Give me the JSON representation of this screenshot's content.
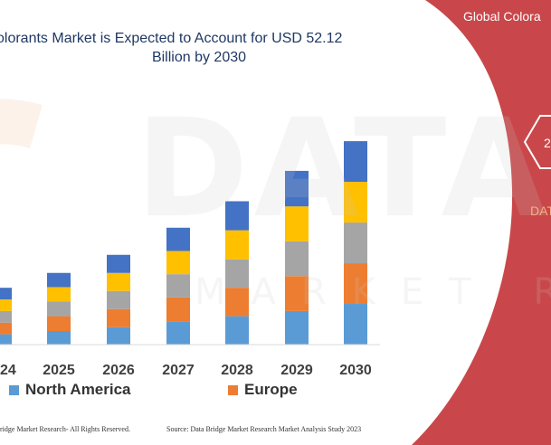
{
  "chart_data": {
    "type": "bar",
    "stacked": true,
    "title_line1": "olorants Market is Expected to Account for USD 52.12",
    "title_line2": "Billion by 2030",
    "categories": [
      "24",
      "2025",
      "2026",
      "2027",
      "2028",
      "2029",
      "2030"
    ],
    "series": [
      {
        "name": "North America",
        "color": "#5b9bd5",
        "values": [
          1.6,
          2.1,
          2.7,
          3.6,
          4.4,
          5.2,
          6.3
        ]
      },
      {
        "name": "Europe",
        "color": "#ed7d31",
        "values": [
          1.8,
          2.3,
          2.8,
          3.7,
          4.4,
          5.4,
          6.3
        ]
      },
      {
        "color": "#a5a5a5",
        "values": [
          1.8,
          2.3,
          2.8,
          3.6,
          4.4,
          5.4,
          6.3
        ]
      },
      {
        "color": "#ffc000",
        "values": [
          1.8,
          2.2,
          2.8,
          3.6,
          4.5,
          5.4,
          6.3
        ]
      },
      {
        "color": "#4472c4",
        "values": [
          1.8,
          2.2,
          2.8,
          3.6,
          4.5,
          5.5,
          6.3
        ]
      }
    ],
    "ylim": [
      0,
      35
    ],
    "grid": false,
    "legend_position": "bottom"
  },
  "right_panel": {
    "title": "Global Colora",
    "badge": "2",
    "brand": "DAT",
    "background_color": "#c9474a"
  },
  "watermark": {
    "line1": "DATABRI",
    "line2": "MARKET RESE"
  },
  "footer": {
    "left": "ridge Market Research- All Rights Reserved.",
    "right": "Source: Data Bridge Market Research Market Analysis Study 2023"
  }
}
